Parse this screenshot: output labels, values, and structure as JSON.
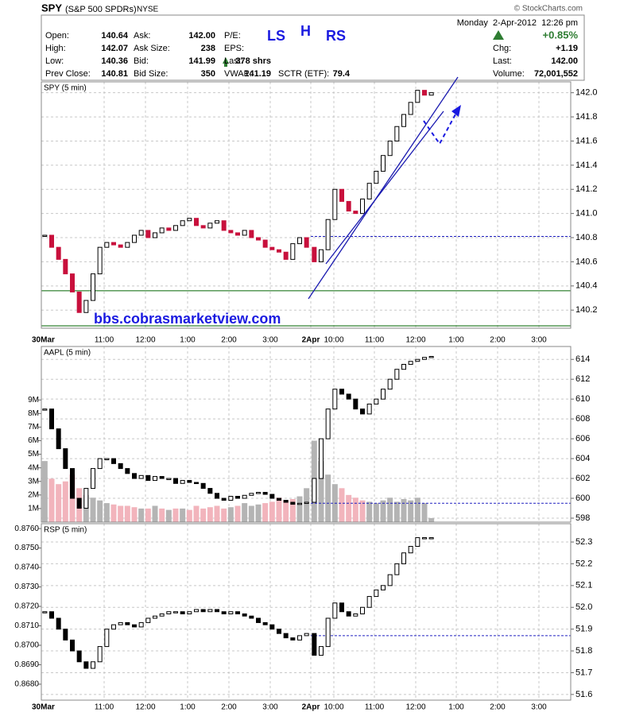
{
  "header": {
    "symbol": "SPY",
    "name": "(S&P 500 SPDRs)",
    "exchange": "NYSE",
    "credit": "© StockCharts.com",
    "datetime": "Monday  2-Apr-2012  12:26 pm",
    "change_pct": "+0.85%",
    "quote_left": [
      [
        "Open:",
        "140.64"
      ],
      [
        "High:",
        "142.07"
      ],
      [
        "Low:",
        "140.36"
      ],
      [
        "Prev Close:",
        "140.81"
      ]
    ],
    "quote_mid": [
      [
        "Ask:",
        "142.00"
      ],
      [
        "Ask Size:",
        "238"
      ],
      [
        "Bid:",
        "141.99"
      ],
      [
        "Bid Size:",
        "350"
      ]
    ],
    "quote_third": [
      [
        "P/E:"
      ],
      [
        "EPS:"
      ],
      [
        "Last:",
        "378 shrs"
      ],
      [
        "VWAP:",
        "141.19"
      ]
    ],
    "quote_sctr": [
      "SCTR (ETF):",
      "79.4"
    ],
    "quote_right": [
      [
        "Chg:",
        "+1.19"
      ],
      [
        "Last:",
        "142.00"
      ],
      [
        "Volume:",
        "72,001,552"
      ]
    ]
  },
  "annotations": [
    "LS",
    "H",
    "RS",
    "bbs.cobrasmarketview.com"
  ],
  "time_axis": [
    "30Mar",
    "11:00",
    "12:00",
    "1:00",
    "2:00",
    "3:00",
    "2Apr",
    "10:00",
    "11:00",
    "12:00",
    "1:00",
    "2:00",
    "3:00"
  ],
  "chart_data": [
    {
      "type": "candlestick",
      "title": "SPY (5 min)",
      "down_color": "#c8103c",
      "close": [
        140.82,
        140.72,
        140.62,
        140.5,
        140.35,
        140.18,
        140.28,
        140.5,
        140.72,
        140.76,
        140.74,
        140.72,
        140.76,
        140.82,
        140.86,
        140.8,
        140.84,
        140.88,
        140.86,
        140.9,
        140.94,
        140.96,
        140.9,
        140.88,
        140.92,
        140.94,
        140.86,
        140.84,
        140.82,
        140.86,
        140.8,
        140.78,
        140.72,
        140.7,
        140.68,
        140.62,
        140.75,
        140.8,
        140.72,
        140.6,
        140.7,
        140.95,
        141.2,
        141.1,
        141.02,
        141.0,
        141.12,
        141.25,
        141.35,
        141.48,
        141.6,
        141.72,
        141.82,
        141.92,
        142.02,
        141.98,
        142.0
      ],
      "ylim": [
        140.05,
        142.09
      ],
      "yticks": [
        140.2,
        140.4,
        140.6,
        140.8,
        {
          "value": 141,
          "label": "141.0"
        },
        141.2,
        141.4,
        141.6,
        141.8,
        {
          "value": 142,
          "label": "142.0"
        }
      ],
      "hlines": [
        140.36,
        140.07
      ],
      "hline_color": "#006400",
      "dashed_line": 140.81,
      "dashed_color": "#2020c0",
      "grid": true
    },
    {
      "type": "candlestick",
      "title": "AAPL (5 min)",
      "down_color": "#000000",
      "close": [
        609,
        607,
        605,
        603,
        600,
        599,
        601,
        603,
        604,
        604,
        603.5,
        603,
        602.5,
        602,
        602.3,
        601.8,
        602.2,
        602,
        602,
        601.5,
        601.8,
        601.6,
        601.5,
        601,
        600.5,
        600,
        599.8,
        600.2,
        600,
        600.3,
        600.5,
        600.6,
        600.4,
        600,
        599.8,
        599.6,
        599.4,
        599.5,
        599.6,
        602,
        606,
        609,
        611,
        610.5,
        610,
        609,
        608.5,
        609.5,
        610,
        611,
        612,
        613,
        613.5,
        613.8,
        614,
        614.2,
        614.3
      ],
      "volume": [
        4.5,
        3.2,
        2.8,
        3.0,
        3.5,
        2.5,
        2.0,
        1.8,
        1.6,
        1.4,
        1.3,
        1.2,
        1.2,
        1.1,
        1.0,
        1.0,
        1.2,
        1.0,
        0.9,
        1.0,
        1.0,
        0.9,
        1.2,
        1.0,
        1.1,
        1.2,
        1.0,
        1.1,
        1.2,
        1.4,
        1.2,
        1.3,
        1.4,
        1.5,
        1.8,
        1.6,
        1.7,
        1.9,
        2.5,
        6.0,
        4.5,
        3.5,
        2.8,
        2.5,
        2.0,
        1.8,
        1.6,
        1.5,
        1.4,
        1.6,
        1.8,
        1.5,
        1.7,
        1.6,
        1.8,
        1.4,
        0.3
      ],
      "ylim": [
        597.6,
        615.3
      ],
      "yticks": [
        598,
        600,
        602,
        604,
        606,
        608,
        610,
        612,
        614
      ],
      "y2lim": [
        0,
        12.94
      ],
      "y2ticks": [
        {
          "value": 1,
          "label": "1M"
        },
        {
          "value": 2,
          "label": "2M"
        },
        {
          "value": 3,
          "label": "3M"
        },
        {
          "value": 4,
          "label": "4M"
        },
        {
          "value": 5,
          "label": "5M"
        },
        {
          "value": 6,
          "label": "6M"
        },
        {
          "value": 7,
          "label": "7M"
        },
        {
          "value": 8,
          "label": "8M"
        },
        {
          "value": 9,
          "label": "9M"
        }
      ],
      "volume_up_color": "#b4b4b4",
      "volume_down_color": "#f2b4bc",
      "dashed_line": 599.5,
      "dashed_color": "#2020c0",
      "grid": true
    },
    {
      "type": "candlestick",
      "title": "RSP (5 min)",
      "down_color": "#000000",
      "close": [
        51.98,
        51.95,
        51.9,
        51.85,
        51.8,
        51.75,
        51.72,
        51.75,
        51.82,
        51.9,
        51.92,
        51.93,
        51.92,
        51.91,
        51.93,
        51.95,
        51.96,
        51.97,
        51.98,
        51.98,
        51.97,
        51.98,
        51.99,
        51.98,
        51.99,
        51.98,
        51.97,
        51.98,
        51.97,
        51.96,
        51.95,
        51.93,
        51.92,
        51.9,
        51.88,
        51.86,
        51.85,
        51.87,
        51.88,
        51.78,
        51.82,
        51.95,
        52.02,
        51.98,
        51.96,
        51.97,
        52.0,
        52.05,
        52.08,
        52.1,
        52.15,
        52.2,
        52.25,
        52.28,
        52.32,
        52.32,
        52.32
      ],
      "ylim": [
        51.574,
        52.384
      ],
      "yticks": [
        51.6,
        51.7,
        51.8,
        51.9,
        {
          "value": 52,
          "label": "52.0"
        },
        52.1,
        52.2,
        52.3
      ],
      "y2lim": [
        0.86718,
        0.87625
      ],
      "y2ticks": [
        {
          "value": 0.868,
          "label": "0.8680"
        },
        {
          "value": 0.869,
          "label": "0.8690"
        },
        {
          "value": 0.87,
          "label": "0.8700"
        },
        {
          "value": 0.871,
          "label": "0.8710"
        },
        {
          "value": 0.872,
          "label": "0.8720"
        },
        {
          "value": 0.873,
          "label": "0.8730"
        },
        {
          "value": 0.874,
          "label": "0.8740"
        },
        {
          "value": 0.875,
          "label": "0.8750"
        },
        {
          "value": 0.876,
          "label": "0.8760"
        }
      ],
      "dashed_line": 51.87,
      "dashed_color": "#2020c0",
      "grid": true
    }
  ]
}
